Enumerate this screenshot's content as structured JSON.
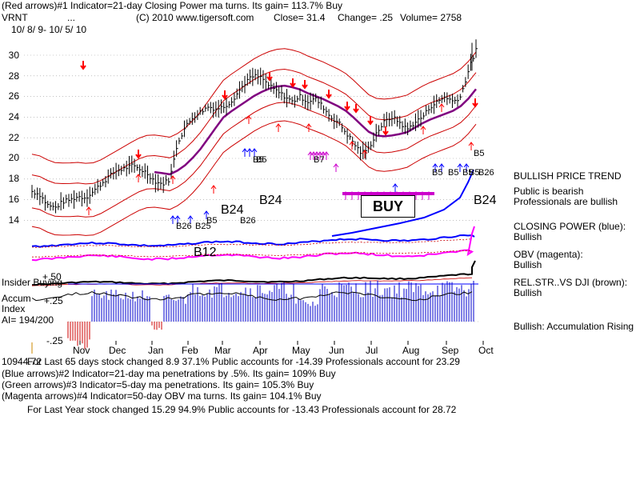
{
  "header": {
    "line1": "(Red arrows)#1 Indicator=21-day Closing Power ma turns. Its gain= 113.7% Buy",
    "ticker": "VRNT",
    "dots": "...",
    "copyright": "(C) 2010 www.tigersoft.com",
    "close": "Close=  31.4",
    "change": "Change= .25",
    "volume": "Volume=  2758",
    "date_range": "10/ 8/ 9- 10/ 5/ 10"
  },
  "chart_data": {
    "type": "line",
    "title": "VRNT",
    "y_ticks": [
      "30",
      "28",
      "26",
      "24",
      "22",
      "20",
      "18",
      "16",
      "14"
    ],
    "ylim": [
      13,
      31.5
    ],
    "x_labels": [
      "Nov",
      "Dec",
      "Jan",
      "Feb",
      "Mar",
      "Apr",
      "May",
      "Jun",
      "Jul",
      "Aug",
      "Sep",
      "Oct"
    ],
    "price_series": [
      16.8,
      16.5,
      15.5,
      15.2,
      15.8,
      16.0,
      16.3,
      16.2,
      16.8,
      17.5,
      18.2,
      18.8,
      19.0,
      19.3,
      19.0,
      18.6,
      17.8,
      17.5,
      18.0,
      21.5,
      23.0,
      24.0,
      24.5,
      25.0,
      24.8,
      25.0,
      25.5,
      26.5,
      27.5,
      28.0,
      27.8,
      27.0,
      26.5,
      26.0,
      25.5,
      26.0,
      25.5,
      25.8,
      25.0,
      24.0,
      23.5,
      22.5,
      21.5,
      20.5,
      21.0,
      22.5,
      23.5,
      24.0,
      23.5,
      22.8,
      23.5,
      24.0,
      25.0,
      25.5,
      26.0,
      25.5,
      26.0,
      28.5,
      30.5
    ],
    "annotations": [
      "B5",
      "B7",
      "B5",
      "B5",
      "B5",
      "B26",
      "B25",
      "B5",
      "B24",
      "B26",
      "B24",
      "B12",
      "B24",
      "B5",
      "B5",
      "B5",
      "B26"
    ],
    "signal_label": "BUY"
  },
  "lower_panel": {
    "insider_label": "Insider Buying",
    "plus50": "+.50",
    "plus25": "+.25",
    "minus25": "-.25",
    "accum_label": "Accum",
    "index_label": "Index",
    "ai_value": "AI= 194/200",
    "bottom_value": "10944.72"
  },
  "right_panel": {
    "trend_title": "BULLISH PRICE TREND",
    "public": "Public is bearish",
    "professionals": "Professionals are bullish",
    "cp_title": "CLOSING POWER (blue):",
    "cp_value": "Bullish",
    "obv_title": "OBV (magenta):",
    "obv_value": "Bullish",
    "rs_title": "REL.STR..VS DJI (brown):",
    "rs_value": "Bullish",
    "accum_status": "Bullish: Accumulation Rising"
  },
  "footer": {
    "line1": "For Last 65 days stock changed  8.9  37.1%  Public accounts for -14.39   Professionals account for  23.29",
    "line2": "(Blue arrows)#2 Indicator=21-day ma penetrations by .5%. Its gain= 109% Buy",
    "line3": "(Green arrows)#3 Indicator=5-day ma penetrations. Its gain= 105.3% Buy",
    "line4": "(Magenta arrows)#4 Indicator=50-day OBV ma turns. Its gain= 104.1% Buy",
    "line5": "For Last Year stock changed  15.29  94.9%  Public accounts for -13.43   Professionals account for  28.72"
  },
  "colors": {
    "price": "#000000",
    "band": "#cc0000",
    "ma": "#800080",
    "closing_power": "#0000ff",
    "obv": "#ff00ff",
    "rel_str": "#800000",
    "accum_pos": "#0000cc",
    "accum_neg": "#cc0000"
  }
}
